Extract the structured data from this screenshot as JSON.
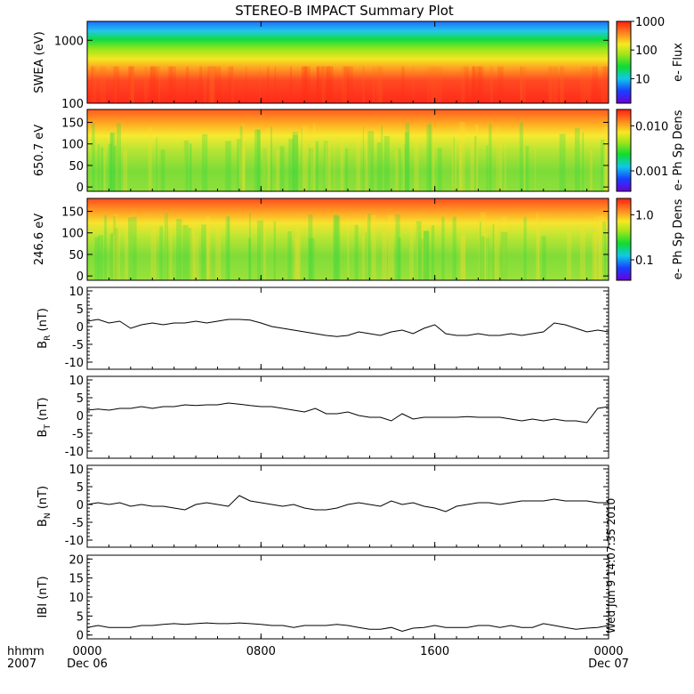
{
  "chart_data": {
    "type": "line",
    "title": "STEREO-B IMPACT Summary Plot",
    "x_axis": {
      "label_line1": "hhmm",
      "label_line2": "2007",
      "ticks": [
        {
          "hour": 0,
          "label1": "0000",
          "label2": "Dec 06"
        },
        {
          "hour": 8,
          "label1": "0800",
          "label2": ""
        },
        {
          "hour": 16,
          "label1": "1600",
          "label2": ""
        },
        {
          "hour": 24,
          "label1": "0000",
          "label2": "Dec 07"
        }
      ],
      "range": [
        0,
        24
      ]
    },
    "timestamp": "Wed Jun 9 14:07:35 2010",
    "spectrograms": [
      {
        "name": "SWEA",
        "ylabel": "SWEA (eV)",
        "yscale": "log",
        "yticks": [
          {
            "v": 100,
            "label": "100"
          },
          {
            "v": 1000,
            "label": "1000"
          }
        ],
        "ylim": [
          100,
          2000
        ],
        "colorbar_label": "e- Flux",
        "colorbar_ticks": [
          "10",
          "100",
          "1000"
        ]
      },
      {
        "name": "PAD 650.7",
        "ylabel": "650.7 eV",
        "yticks": [
          {
            "v": 0,
            "label": "0"
          },
          {
            "v": 50,
            "label": "50"
          },
          {
            "v": 100,
            "label": "100"
          },
          {
            "v": 150,
            "label": "150"
          }
        ],
        "ylim": [
          -10,
          180
        ],
        "colorbar_label": "e- Ph Sp Dens",
        "colorbar_ticks": [
          "0.001",
          "0.010"
        ]
      },
      {
        "name": "PAD 246.6",
        "ylabel": "246.6 eV",
        "yticks": [
          {
            "v": 0,
            "label": "0"
          },
          {
            "v": 50,
            "label": "50"
          },
          {
            "v": 100,
            "label": "100"
          },
          {
            "v": 150,
            "label": "150"
          }
        ],
        "ylim": [
          -10,
          180
        ],
        "colorbar_label": "e- Ph Sp Dens",
        "colorbar_ticks": [
          "0.1",
          "1.0"
        ]
      }
    ],
    "line_panels": [
      {
        "name": "BR",
        "ylabel_main": "B",
        "ylabel_sub": "R",
        "ylabel_unit": "(nT)",
        "ylim": [
          -12,
          11
        ],
        "yticks": [
          -10,
          -5,
          0,
          5,
          10
        ],
        "x": [
          0,
          0.5,
          1,
          1.5,
          2,
          2.5,
          3,
          3.5,
          4,
          4.5,
          5,
          5.5,
          6,
          6.5,
          7,
          7.5,
          8,
          8.5,
          9,
          9.5,
          10,
          10.5,
          11,
          11.5,
          12,
          12.5,
          13,
          13.5,
          14,
          14.5,
          15,
          15.5,
          16,
          16.5,
          17,
          17.5,
          18,
          18.5,
          19,
          19.5,
          20,
          20.5,
          21,
          21.5,
          22,
          22.5,
          23,
          23.5,
          24
        ],
        "y": [
          1.5,
          2.0,
          1.0,
          1.5,
          -0.5,
          0.5,
          1.0,
          0.5,
          1.0,
          1.0,
          1.5,
          1.0,
          1.5,
          2.0,
          2.0,
          1.8,
          1.0,
          0.0,
          -0.5,
          -1.0,
          -1.5,
          -2.0,
          -2.5,
          -2.8,
          -2.5,
          -1.5,
          -2.0,
          -2.5,
          -1.5,
          -1.0,
          -2.0,
          -0.5,
          0.5,
          -2.0,
          -2.5,
          -2.5,
          -2.0,
          -2.5,
          -2.5,
          -2.0,
          -2.5,
          -2.0,
          -1.5,
          1.0,
          0.5,
          -0.5,
          -1.5,
          -1.0,
          -1.5
        ]
      },
      {
        "name": "BT",
        "ylabel_main": "B",
        "ylabel_sub": "T",
        "ylabel_unit": "(nT)",
        "ylim": [
          -12,
          11
        ],
        "yticks": [
          -10,
          -5,
          0,
          5,
          10
        ],
        "x": [
          0,
          0.5,
          1,
          1.5,
          2,
          2.5,
          3,
          3.5,
          4,
          4.5,
          5,
          5.5,
          6,
          6.5,
          7,
          7.5,
          8,
          8.5,
          9,
          9.5,
          10,
          10.5,
          11,
          11.5,
          12,
          12.5,
          13,
          13.5,
          14,
          14.5,
          15,
          15.5,
          16,
          16.5,
          17,
          17.5,
          18,
          18.5,
          19,
          19.5,
          20,
          20.5,
          21,
          21.5,
          22,
          22.5,
          23,
          23.5,
          24
        ],
        "y": [
          1.5,
          1.8,
          1.5,
          2.0,
          2.0,
          2.5,
          2.0,
          2.5,
          2.5,
          3.0,
          2.8,
          3.0,
          3.0,
          3.5,
          3.2,
          2.8,
          2.5,
          2.5,
          2.0,
          1.5,
          1.0,
          2.0,
          0.5,
          0.5,
          1.0,
          0.0,
          -0.5,
          -0.5,
          -1.5,
          0.5,
          -1.0,
          -0.5,
          -0.5,
          -0.5,
          -0.5,
          -0.3,
          -0.5,
          -0.5,
          -0.5,
          -1.0,
          -1.5,
          -1.0,
          -1.5,
          -1.0,
          -1.5,
          -1.5,
          -2.0,
          2.0,
          2.5
        ]
      },
      {
        "name": "BN",
        "ylabel_main": "B",
        "ylabel_sub": "N",
        "ylabel_unit": "(nT)",
        "ylim": [
          -12,
          11
        ],
        "yticks": [
          -10,
          -5,
          0,
          5,
          10
        ],
        "x": [
          0,
          0.5,
          1,
          1.5,
          2,
          2.5,
          3,
          3.5,
          4,
          4.5,
          5,
          5.5,
          6,
          6.5,
          7,
          7.5,
          8,
          8.5,
          9,
          9.5,
          10,
          10.5,
          11,
          11.5,
          12,
          12.5,
          13,
          13.5,
          14,
          14.5,
          15,
          15.5,
          16,
          16.5,
          17,
          17.5,
          18,
          18.5,
          19,
          19.5,
          20,
          20.5,
          21,
          21.5,
          22,
          22.5,
          23,
          23.5,
          24
        ],
        "y": [
          0.0,
          0.5,
          0.0,
          0.5,
          -0.5,
          0.0,
          -0.5,
          -0.5,
          -1.0,
          -1.5,
          0.0,
          0.5,
          0.0,
          -0.5,
          2.5,
          1.0,
          0.5,
          0.0,
          -0.5,
          0.0,
          -1.0,
          -1.5,
          -1.5,
          -1.0,
          0.0,
          0.5,
          0.0,
          -0.5,
          1.0,
          0.0,
          0.5,
          -0.5,
          -1.0,
          -2.0,
          -0.5,
          0.0,
          0.5,
          0.5,
          0.0,
          0.5,
          1.0,
          1.0,
          1.0,
          1.5,
          1.0,
          1.0,
          1.0,
          0.5,
          0.5
        ]
      },
      {
        "name": "Bmag",
        "ylabel_main": "IBI",
        "ylabel_sub": "",
        "ylabel_unit": "(nT)",
        "ylim": [
          -1,
          21
        ],
        "yticks": [
          0,
          5,
          10,
          15,
          20
        ],
        "x": [
          0,
          0.5,
          1,
          1.5,
          2,
          2.5,
          3,
          3.5,
          4,
          4.5,
          5,
          5.5,
          6,
          6.5,
          7,
          7.5,
          8,
          8.5,
          9,
          9.5,
          10,
          10.5,
          11,
          11.5,
          12,
          12.5,
          13,
          13.5,
          14,
          14.5,
          15,
          15.5,
          16,
          16.5,
          17,
          17.5,
          18,
          18.5,
          19,
          19.5,
          20,
          20.5,
          21,
          21.5,
          22,
          22.5,
          23,
          23.5,
          24
        ],
        "y": [
          2.0,
          2.5,
          2.0,
          2.0,
          2.0,
          2.5,
          2.5,
          2.8,
          3.0,
          2.8,
          3.0,
          3.2,
          3.0,
          3.0,
          3.2,
          3.0,
          2.8,
          2.5,
          2.5,
          2.0,
          2.5,
          2.5,
          2.5,
          2.8,
          2.5,
          2.0,
          1.5,
          1.5,
          2.0,
          1.0,
          1.8,
          2.0,
          2.5,
          2.0,
          2.0,
          2.0,
          2.5,
          2.5,
          2.0,
          2.5,
          2.0,
          2.0,
          3.0,
          2.5,
          2.0,
          1.5,
          1.8,
          2.0,
          2.5
        ]
      }
    ]
  }
}
